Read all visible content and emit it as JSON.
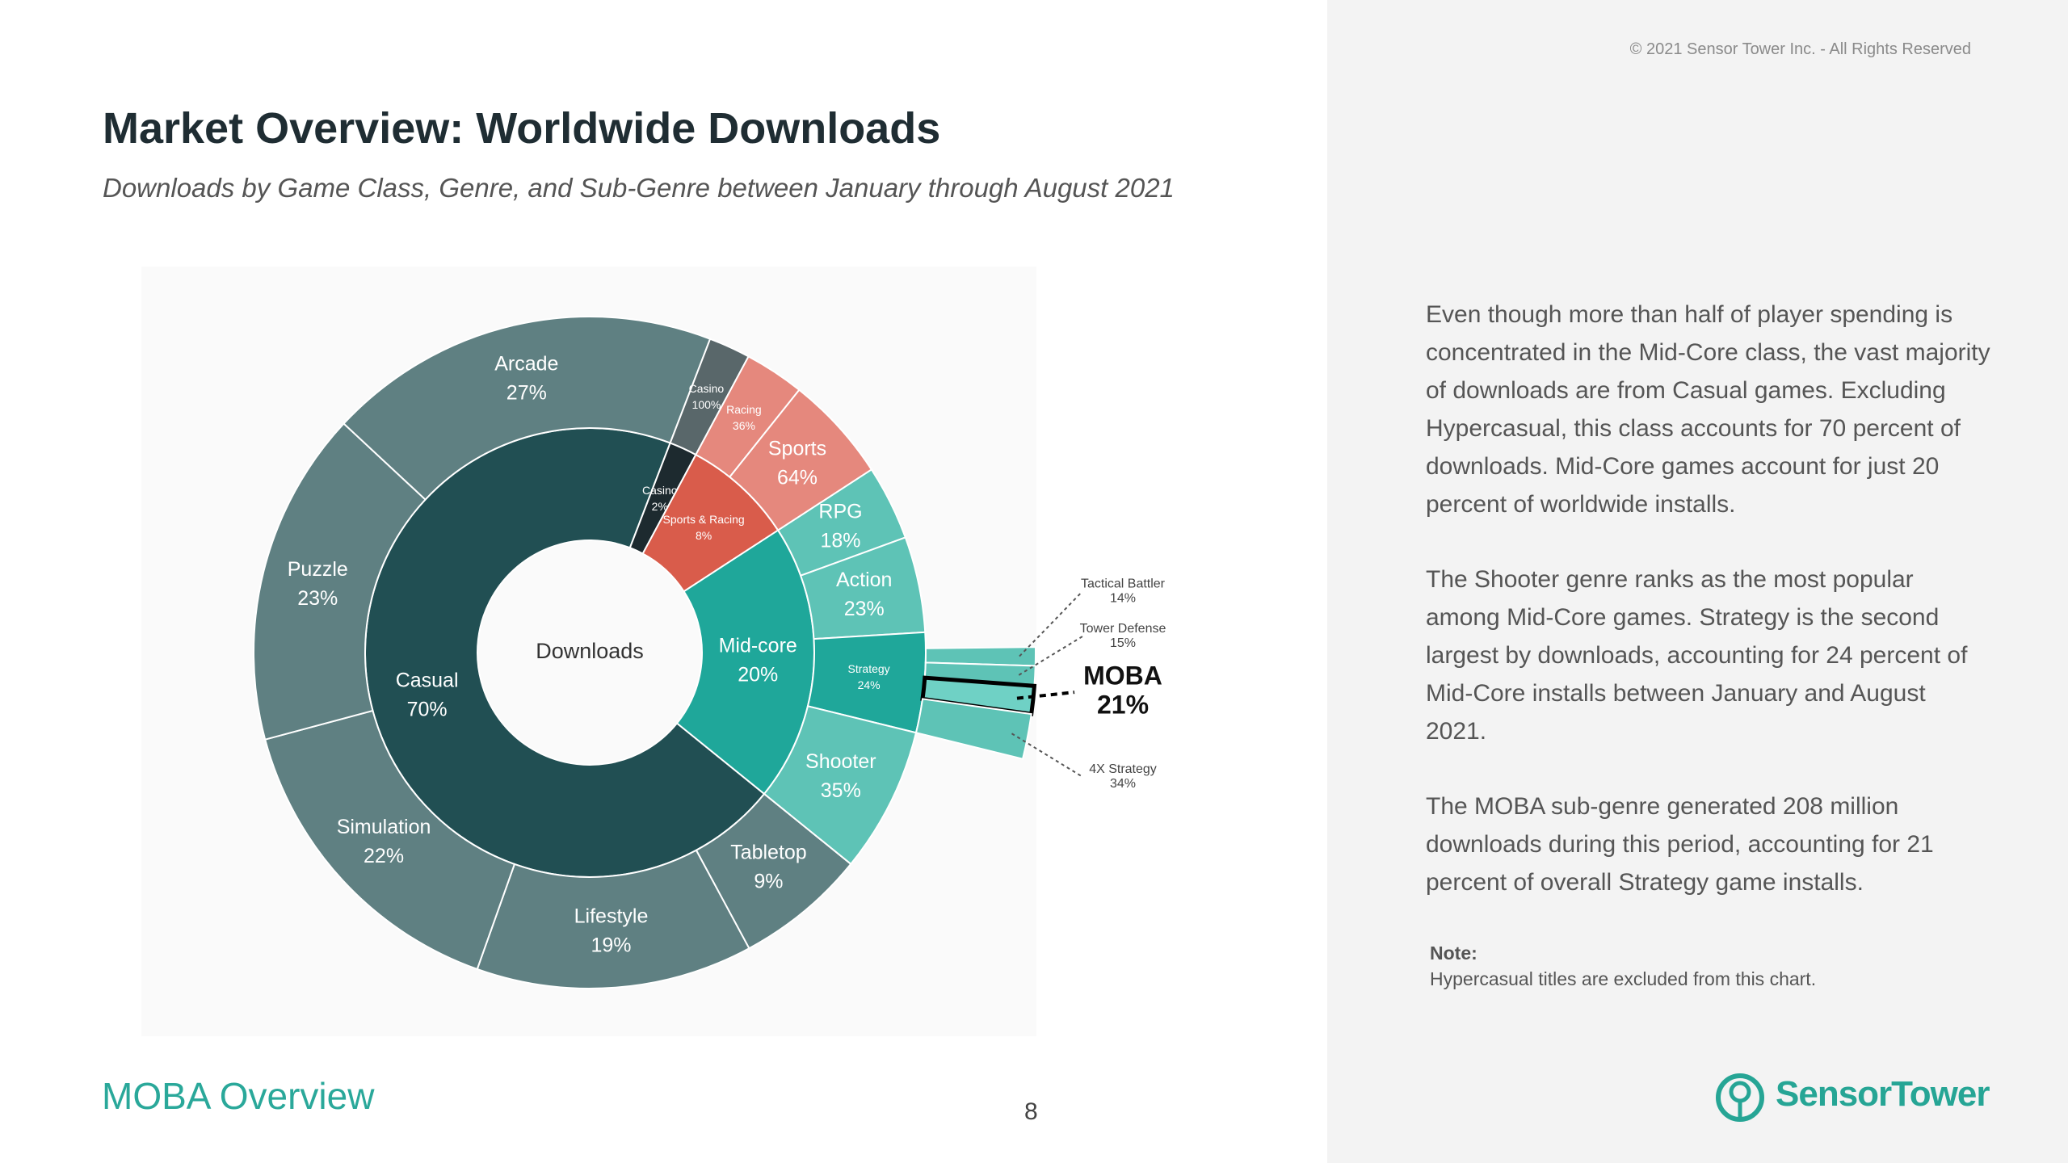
{
  "header": {
    "copyright": "© 2021 Sensor Tower Inc. - All Rights Reserved",
    "title": "Market Overview: Worldwide Downloads",
    "subtitle": "Downloads by Game Class, Genre, and Sub-Genre between January through August 2021"
  },
  "chart_data": {
    "type": "sunburst",
    "center_label": "Downloads",
    "segments": [
      {
        "name": "Casual",
        "value": 70,
        "value_label": "70%",
        "color": "#214f53",
        "children": [
          {
            "name": "Tabletop",
            "value": 9,
            "value_label": "9%",
            "color": "#5f8082"
          },
          {
            "name": "Lifestyle",
            "value": 19,
            "value_label": "19%",
            "color": "#5f8082"
          },
          {
            "name": "Simulation",
            "value": 22,
            "value_label": "22%",
            "color": "#5f8082"
          },
          {
            "name": "Puzzle",
            "value": 23,
            "value_label": "23%",
            "color": "#5f8082"
          },
          {
            "name": "Arcade",
            "value": 27,
            "value_label": "27%",
            "color": "#5f8082"
          }
        ]
      },
      {
        "name": "Casino",
        "value": 2,
        "value_label": "2%",
        "color": "#1d2a2f",
        "children": [
          {
            "name": "Casino",
            "value": 100,
            "value_label": "100%",
            "color": "#59676a"
          }
        ]
      },
      {
        "name": "Sports & Racing",
        "value": 8,
        "value_label": "8%",
        "color": "#d95c4b",
        "children": [
          {
            "name": "Racing",
            "value": 36,
            "value_label": "36%",
            "color": "#e5887d"
          },
          {
            "name": "Sports",
            "value": 64,
            "value_label": "64%",
            "color": "#e5887d"
          }
        ]
      },
      {
        "name": "Mid-core",
        "value": 20,
        "value_label": "20%",
        "color": "#1fa79a",
        "children": [
          {
            "name": "RPG",
            "value": 18,
            "value_label": "18%",
            "color": "#5ec3b6"
          },
          {
            "name": "Action",
            "value": 23,
            "value_label": "23%",
            "color": "#5ec3b6"
          },
          {
            "name": "Strategy",
            "value": 24,
            "value_label": "24%",
            "color": "#1fa79a",
            "children": [
              {
                "name": "Tactical Battler",
                "value": 14,
                "value_label": "14%",
                "color": "#5ec3b6"
              },
              {
                "name": "Tower Defense",
                "value": 15,
                "value_label": "15%",
                "color": "#5ec3b6"
              },
              {
                "name": "MOBA",
                "value": 21,
                "value_label": "21%",
                "color": "#6fd1c5",
                "highlighted": true
              },
              {
                "name": "4X Strategy",
                "value": 34,
                "value_label": "34%",
                "color": "#5ec3b6"
              }
            ]
          },
          {
            "name": "Shooter",
            "value": 35,
            "value_label": "35%",
            "color": "#5ec3b6"
          }
        ]
      }
    ]
  },
  "body": {
    "paragraphs": [
      "Even though more than half of player spending is concentrated in the Mid-Core class, the vast majority of downloads are from Casual games. Excluding Hypercasual, this class accounts for 70 percent of downloads. Mid-Core games account for just 20 percent of worldwide installs.",
      "The Shooter genre ranks as the most popular among Mid-Core games. Strategy is the second largest by downloads, accounting for 24 percent of Mid-Core installs between January and August 2021.",
      "The MOBA sub-genre generated 208 million downloads during this period, accounting for 21 percent of overall Strategy game installs."
    ],
    "note_label": "Note:",
    "note": "Hypercasual titles are excluded from this chart."
  },
  "footer": {
    "section": "MOBA Overview",
    "page": 8,
    "logo": "SensorTower"
  }
}
